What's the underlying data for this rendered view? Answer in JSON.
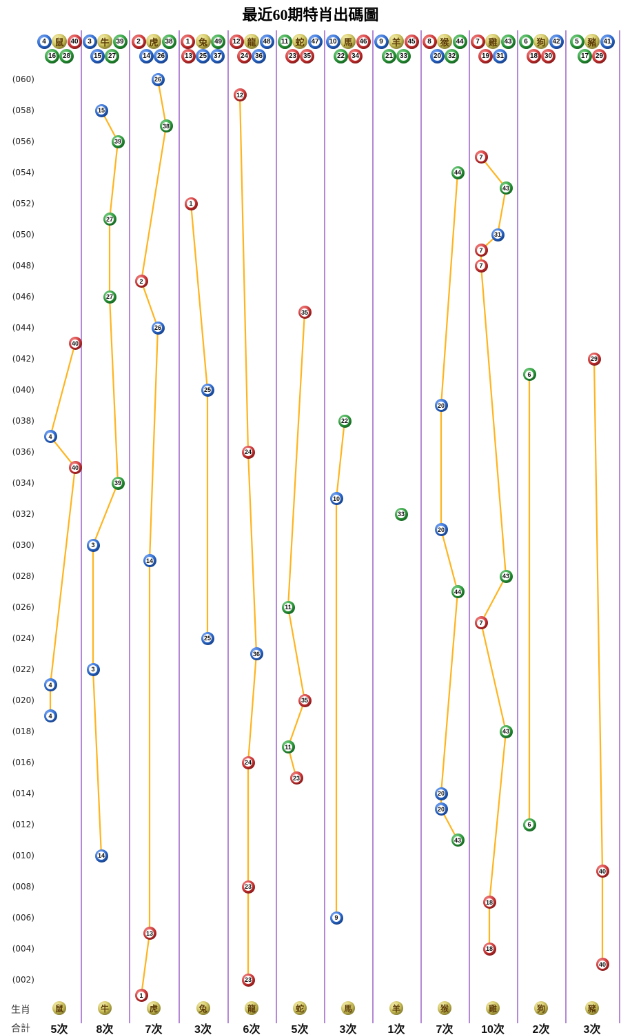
{
  "title": "最近60期特肖出碼圖",
  "footer": {
    "row1_label": "生肖",
    "row2_label": "合計"
  },
  "colors": {
    "line": "#ffb41e",
    "separator": "#b488d6",
    "red": "#d63333",
    "blue": "#2a6cd8",
    "green": "#2ba03a",
    "yellow_ball": "#cfc355",
    "title_text": "#000000"
  },
  "number_colors": {
    "red": [
      1,
      2,
      7,
      8,
      12,
      13,
      18,
      19,
      23,
      24,
      29,
      30,
      34,
      35,
      40,
      45,
      46
    ],
    "blue": [
      3,
      4,
      9,
      10,
      14,
      15,
      20,
      25,
      26,
      31,
      36,
      37,
      41,
      42,
      47,
      48
    ],
    "green": [
      5,
      6,
      11,
      16,
      17,
      21,
      22,
      27,
      28,
      32,
      33,
      38,
      39,
      43,
      44,
      49
    ]
  },
  "y_axis_labels": [
    "(060)",
    "(058)",
    "(056)",
    "(054)",
    "(052)",
    "(050)",
    "(048)",
    "(046)",
    "(044)",
    "(042)",
    "(040)",
    "(038)",
    "(036)",
    "(034)",
    "(032)",
    "(030)",
    "(028)",
    "(026)",
    "(024)",
    "(022)",
    "(020)",
    "(018)",
    "(016)",
    "(014)",
    "(012)",
    "(010)",
    "(008)",
    "(006)",
    "(004)",
    "(002)"
  ],
  "chart_data": {
    "type": "scatter",
    "title": "最近60期特肖出碼圖",
    "x_categories": [
      "鼠",
      "牛",
      "虎",
      "兔",
      "龍",
      "蛇",
      "馬",
      "羊",
      "猴",
      "雞",
      "狗",
      "豬"
    ],
    "y_axis": {
      "min": 1,
      "max": 60,
      "tick_step": 2,
      "tick_format": "(0NN)"
    },
    "legend_position": "none",
    "grid": false,
    "columns": [
      {
        "zodiac": "鼠",
        "header_row1": [
          4,
          40
        ],
        "header_row2": [
          16,
          28
        ],
        "count": "5次",
        "points": [
          {
            "period": 43,
            "num": 40
          },
          {
            "period": 37,
            "num": 4
          },
          {
            "period": 35,
            "num": 40
          },
          {
            "period": 21,
            "num": 4
          },
          {
            "period": 19,
            "num": 4
          }
        ]
      },
      {
        "zodiac": "牛",
        "header_row1": [
          3,
          39
        ],
        "header_row2": [
          15,
          27
        ],
        "count": "8次",
        "points": [
          {
            "period": 58,
            "num": 15
          },
          {
            "period": 56,
            "num": 39
          },
          {
            "period": 51,
            "num": 27
          },
          {
            "period": 46,
            "num": 27
          },
          {
            "period": 34,
            "num": 39
          },
          {
            "period": 30,
            "num": 3
          },
          {
            "period": 22,
            "num": 3
          },
          {
            "period": 10,
            "num": 14
          }
        ]
      },
      {
        "zodiac": "虎",
        "header_row1": [
          2,
          38
        ],
        "header_row2": [
          14,
          26
        ],
        "count": "7次",
        "points": [
          {
            "period": 60,
            "num": 26
          },
          {
            "period": 57,
            "num": 38
          },
          {
            "period": 47,
            "num": 2
          },
          {
            "period": 44,
            "num": 26
          },
          {
            "period": 29,
            "num": 14
          },
          {
            "period": 5,
            "num": 13
          },
          {
            "period": 1,
            "num": 1
          }
        ]
      },
      {
        "zodiac": "兔",
        "header_row1": [
          1,
          49
        ],
        "header_row2": [
          13,
          25,
          37
        ],
        "count": "3次",
        "points": [
          {
            "period": 52,
            "num": 1
          },
          {
            "period": 40,
            "num": 25
          },
          {
            "period": 24,
            "num": 25
          }
        ]
      },
      {
        "zodiac": "龍",
        "header_row1": [
          12,
          48
        ],
        "header_row2": [
          24,
          36
        ],
        "count": "6次",
        "points": [
          {
            "period": 59,
            "num": 12
          },
          {
            "period": 36,
            "num": 24
          },
          {
            "period": 23,
            "num": 36
          },
          {
            "period": 16,
            "num": 24
          },
          {
            "period": 8,
            "num": 23
          },
          {
            "period": 2,
            "num": 23
          }
        ]
      },
      {
        "zodiac": "蛇",
        "header_row1": [
          11,
          47
        ],
        "header_row2": [
          23,
          35
        ],
        "count": "5次",
        "points": [
          {
            "period": 45,
            "num": 35
          },
          {
            "period": 26,
            "num": 11
          },
          {
            "period": 20,
            "num": 35
          },
          {
            "period": 17,
            "num": 11
          },
          {
            "period": 15,
            "num": 23
          }
        ]
      },
      {
        "zodiac": "馬",
        "header_row1": [
          10,
          46
        ],
        "header_row2": [
          22,
          34
        ],
        "count": "3次",
        "points": [
          {
            "period": 38,
            "num": 22
          },
          {
            "period": 33,
            "num": 10
          },
          {
            "period": 6,
            "num": 9
          }
        ]
      },
      {
        "zodiac": "羊",
        "header_row1": [
          9,
          45
        ],
        "header_row2": [
          21,
          33
        ],
        "count": "1次",
        "points": [
          {
            "period": 32,
            "num": 33
          }
        ]
      },
      {
        "zodiac": "猴",
        "header_row1": [
          8,
          44
        ],
        "header_row2": [
          20,
          32
        ],
        "count": "7次",
        "points": [
          {
            "period": 54,
            "num": 44
          },
          {
            "period": 39,
            "num": 20
          },
          {
            "period": 31,
            "num": 20
          },
          {
            "period": 27,
            "num": 44
          },
          {
            "period": 14,
            "num": 20
          },
          {
            "period": 13,
            "num": 20
          },
          {
            "period": 11,
            "num": 43
          }
        ]
      },
      {
        "zodiac": "雞",
        "header_row1": [
          7,
          43
        ],
        "header_row2": [
          19,
          31
        ],
        "count": "10次",
        "points": [
          {
            "period": 55,
            "num": 7
          },
          {
            "period": 53,
            "num": 43
          },
          {
            "period": 50,
            "num": 31
          },
          {
            "period": 49,
            "num": 7
          },
          {
            "period": 48,
            "num": 7
          },
          {
            "period": 28,
            "num": 43
          },
          {
            "period": 25,
            "num": 7
          },
          {
            "period": 18,
            "num": 43
          },
          {
            "period": 7,
            "num": 18
          },
          {
            "period": 4,
            "num": 18
          }
        ]
      },
      {
        "zodiac": "狗",
        "header_row1": [
          6,
          42
        ],
        "header_row2": [
          18,
          30
        ],
        "count": "2次",
        "points": [
          {
            "period": 41,
            "num": 6
          },
          {
            "period": 12,
            "num": 6
          }
        ]
      },
      {
        "zodiac": "豬",
        "header_row1": [
          5,
          41
        ],
        "header_row2": [
          17,
          29
        ],
        "count": "3次",
        "points": [
          {
            "period": 42,
            "num": 29
          },
          {
            "period": 9,
            "num": 40
          },
          {
            "period": 3,
            "num": 40
          }
        ]
      }
    ]
  }
}
